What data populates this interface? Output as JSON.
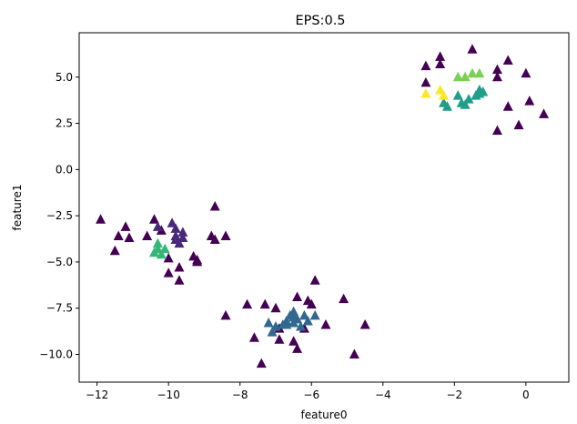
{
  "chart_data": {
    "type": "scatter",
    "title": "EPS:0.5",
    "xlabel": "feature0",
    "ylabel": "feature1",
    "xlim": [
      -12.5,
      1.2
    ],
    "ylim": [
      -11.5,
      7.4
    ],
    "xticks": [
      -12,
      -10,
      -8,
      -6,
      -4,
      -2,
      0
    ],
    "yticks": [
      -10.0,
      -7.5,
      -5.0,
      -2.5,
      0.0,
      2.5,
      5.0
    ],
    "x_tick_labels": [
      "−12",
      "−10",
      "−8",
      "−6",
      "−4",
      "−2",
      "0"
    ],
    "y_tick_labels": [
      "−10.0",
      "−7.5",
      "−5.0",
      "−2.5",
      "0.0",
      "2.5",
      "5.0"
    ],
    "marker": "triangle",
    "grid": false,
    "colors": {
      "-1": "#440154",
      "0": "#482878",
      "1": "#31688e",
      "2": "#1f9e89",
      "3": "#35b779",
      "4": "#7ad151",
      "5": "#fde725"
    },
    "series": [
      {
        "cluster": -1,
        "points": [
          [
            -11.9,
            -2.7
          ],
          [
            -11.5,
            -4.4
          ],
          [
            -11.4,
            -3.6
          ],
          [
            -11.2,
            -3.1
          ],
          [
            -11.1,
            -3.7
          ],
          [
            -10.6,
            -3.6
          ],
          [
            -10.4,
            -2.7
          ],
          [
            -10.2,
            -3.3
          ],
          [
            -10.0,
            -4.8
          ],
          [
            -10.0,
            -5.6
          ],
          [
            -9.7,
            -6.0
          ],
          [
            -9.7,
            -5.3
          ],
          [
            -9.3,
            -4.7
          ],
          [
            -9.2,
            -5.0
          ],
          [
            -9.2,
            -4.9
          ],
          [
            -8.8,
            -3.6
          ],
          [
            -8.7,
            -3.8
          ],
          [
            -8.7,
            -2.0
          ],
          [
            -8.4,
            -3.6
          ],
          [
            -8.4,
            -7.9
          ],
          [
            -7.8,
            -7.3
          ],
          [
            -7.6,
            -9.1
          ],
          [
            -7.4,
            -10.5
          ],
          [
            -7.3,
            -7.3
          ],
          [
            -7.0,
            -7.5
          ],
          [
            -6.9,
            -9.2
          ],
          [
            -6.9,
            -8.6
          ],
          [
            -6.5,
            -9.3
          ],
          [
            -6.4,
            -9.7
          ],
          [
            -6.4,
            -6.9
          ],
          [
            -6.2,
            -8.6
          ],
          [
            -6.1,
            -7.1
          ],
          [
            -6.0,
            -7.3
          ],
          [
            -5.9,
            -6.0
          ],
          [
            -5.6,
            -8.4
          ],
          [
            -5.1,
            -7.0
          ],
          [
            -4.8,
            -10.0
          ],
          [
            -4.5,
            -8.4
          ],
          [
            -2.8,
            5.6
          ],
          [
            -2.8,
            4.7
          ],
          [
            -2.4,
            6.1
          ],
          [
            -2.4,
            5.7
          ],
          [
            -1.5,
            6.5
          ],
          [
            -0.8,
            5.4
          ],
          [
            -0.8,
            5.0
          ],
          [
            -0.8,
            2.1
          ],
          [
            -0.5,
            5.9
          ],
          [
            -0.5,
            3.4
          ],
          [
            -0.2,
            2.4
          ],
          [
            0.0,
            5.2
          ],
          [
            0.1,
            3.7
          ],
          [
            0.5,
            3.0
          ]
        ]
      },
      {
        "cluster": 0,
        "points": [
          [
            -10.3,
            -3.1
          ],
          [
            -9.9,
            -2.9
          ],
          [
            -9.8,
            -3.2
          ],
          [
            -9.8,
            -3.6
          ],
          [
            -9.8,
            -3.8
          ],
          [
            -9.6,
            -3.4
          ],
          [
            -9.6,
            -3.7
          ],
          [
            -9.7,
            -4.0
          ]
        ]
      },
      {
        "cluster": 1,
        "points": [
          [
            -7.2,
            -8.3
          ],
          [
            -7.1,
            -8.8
          ],
          [
            -7.0,
            -8.5
          ],
          [
            -6.8,
            -8.4
          ],
          [
            -6.7,
            -8.2
          ],
          [
            -6.6,
            -7.9
          ],
          [
            -6.5,
            -8.3
          ],
          [
            -6.5,
            -7.7
          ],
          [
            -6.4,
            -8.1
          ],
          [
            -6.3,
            -8.5
          ],
          [
            -6.2,
            -7.9
          ],
          [
            -6.1,
            -8.2
          ],
          [
            -5.9,
            -7.9
          ],
          [
            -6.7,
            -8.4
          ],
          [
            -6.5,
            -8.0
          ]
        ]
      },
      {
        "cluster": 2,
        "points": [
          [
            -2.3,
            3.6
          ],
          [
            -2.2,
            3.4
          ],
          [
            -1.9,
            4.0
          ],
          [
            -1.8,
            3.6
          ],
          [
            -1.7,
            3.5
          ],
          [
            -1.6,
            3.8
          ],
          [
            -1.4,
            4.0
          ],
          [
            -1.3,
            4.3
          ],
          [
            -1.2,
            4.2
          ],
          [
            -1.3,
            4.1
          ]
        ]
      },
      {
        "cluster": 3,
        "points": [
          [
            -10.3,
            -4.0
          ],
          [
            -10.4,
            -4.5
          ],
          [
            -10.3,
            -4.3
          ],
          [
            -10.2,
            -4.6
          ],
          [
            -10.1,
            -4.3
          ]
        ]
      },
      {
        "cluster": 4,
        "points": [
          [
            -1.9,
            5.0
          ],
          [
            -1.7,
            5.0
          ],
          [
            -1.5,
            5.2
          ],
          [
            -1.3,
            5.2
          ]
        ]
      },
      {
        "cluster": 5,
        "points": [
          [
            -2.8,
            4.1
          ],
          [
            -2.4,
            4.3
          ],
          [
            -2.3,
            4.0
          ]
        ]
      }
    ]
  }
}
